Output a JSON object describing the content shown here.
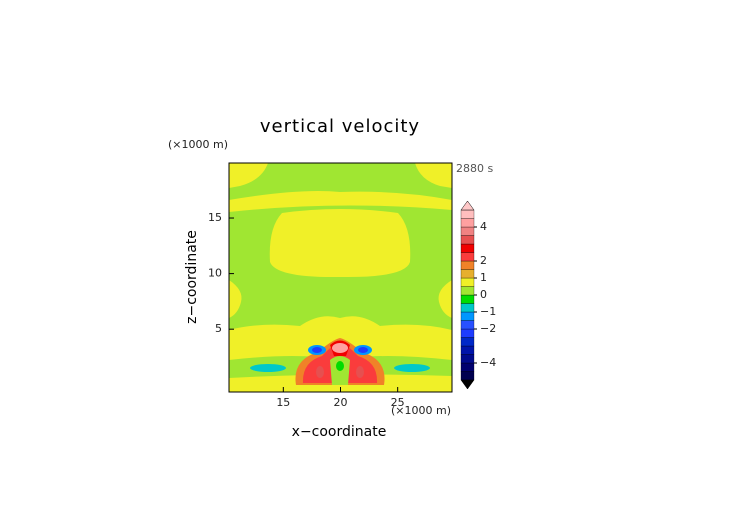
{
  "chart_data": {
    "type": "contour",
    "title": "vertical velocity",
    "x_label": "x−coordinate",
    "y_label": "z−coordinate",
    "x_unit": "(×1000 m)",
    "y_unit": "(×1000 m)",
    "annotation": "2880 s",
    "xlim": [
      10.25,
      29.75
    ],
    "ylim": [
      -0.65,
      19.95
    ],
    "xticks": [
      15,
      20,
      25
    ],
    "yticks": [
      5,
      10,
      15
    ],
    "colorbar": {
      "levels": [
        -5,
        -4.5,
        -4,
        -3.5,
        -3,
        -2.5,
        -2,
        -1.5,
        -1,
        -0.5,
        0,
        0.5,
        1,
        1.5,
        2,
        2.5,
        3,
        3.5,
        4,
        4.5,
        5
      ],
      "colors": [
        "#000050",
        "#00006e",
        "#000a8c",
        "#0014aa",
        "#0028c8",
        "#1e3cff",
        "#2850ff",
        "#0096ff",
        "#00c8c8",
        "#00dc00",
        "#a0e632",
        "#f0f028",
        "#e6af2d",
        "#f08228",
        "#fa3c3c",
        "#f00000",
        "#e65050",
        "#f08282",
        "#ffa0a0",
        "#ffbebe"
      ],
      "under_color": "#000000",
      "over_color": "#ffc8c8",
      "ticks": [
        {
          "value": -4,
          "label": "−4"
        },
        {
          "value": -2,
          "label": "−2"
        },
        {
          "value": -1,
          "label": "−1"
        },
        0,
        1,
        2,
        4
      ]
    }
  }
}
